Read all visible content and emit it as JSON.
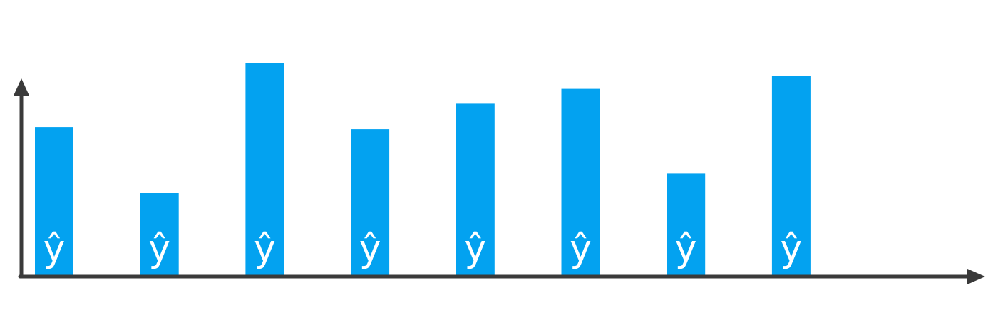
{
  "chart_data": {
    "type": "bar",
    "categories": [
      "",
      "",
      "",
      "",
      "",
      "",
      "",
      ""
    ],
    "values": [
      0.7,
      0.39,
      1.0,
      0.69,
      0.81,
      0.88,
      0.48,
      0.94
    ],
    "bar_labels": [
      "ŷ",
      "ŷ",
      "ŷ",
      "ŷ",
      "ŷ",
      "ŷ",
      "ŷ",
      "ŷ"
    ],
    "title": "",
    "xlabel": "",
    "ylabel": "",
    "ylim": [
      0,
      1
    ],
    "grid": false,
    "legend": "none",
    "colors": {
      "bar": "#03a2f0",
      "axis": "#3a3a3a",
      "label": "#ffffff"
    }
  }
}
